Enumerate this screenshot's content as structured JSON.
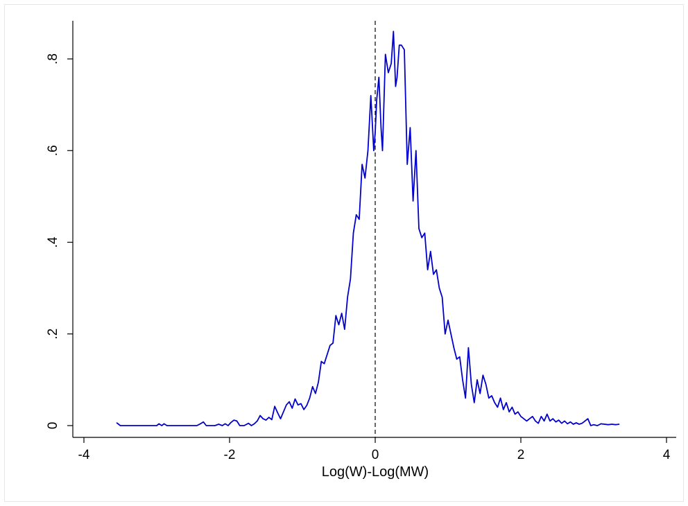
{
  "chart_data": {
    "type": "line",
    "title": "",
    "xlabel": "Log(W)-Log(MW)",
    "ylabel": "",
    "xlim": [
      -4,
      4
    ],
    "ylim": [
      0,
      0.8
    ],
    "x_ticks": [
      -4,
      -2,
      0,
      2,
      4
    ],
    "x_tick_labels": [
      "-4",
      "-2",
      "0",
      "2",
      "4"
    ],
    "y_ticks": [
      0,
      0.2,
      0.4,
      0.6,
      0.8
    ],
    "y_tick_labels": [
      "0",
      ".2",
      ".4",
      ".6",
      ".8"
    ],
    "grid": false,
    "reference_line": {
      "x": 0,
      "style": "dashed",
      "color": "#000000"
    },
    "series": [
      {
        "color": "#0000cc",
        "x": [
          -3.55,
          -3.5,
          -3.4,
          -3.2,
          -3.0,
          -2.97,
          -2.93,
          -2.9,
          -2.86,
          -2.8,
          -2.6,
          -2.45,
          -2.4,
          -2.36,
          -2.32,
          -2.2,
          -2.15,
          -2.1,
          -2.06,
          -2.02,
          -1.98,
          -1.94,
          -1.9,
          -1.86,
          -1.8,
          -1.74,
          -1.7,
          -1.66,
          -1.62,
          -1.58,
          -1.54,
          -1.5,
          -1.46,
          -1.42,
          -1.38,
          -1.34,
          -1.3,
          -1.26,
          -1.22,
          -1.18,
          -1.14,
          -1.1,
          -1.06,
          -1.02,
          -0.98,
          -0.94,
          -0.9,
          -0.86,
          -0.82,
          -0.78,
          -0.74,
          -0.7,
          -0.66,
          -0.62,
          -0.58,
          -0.54,
          -0.5,
          -0.46,
          -0.42,
          -0.38,
          -0.34,
          -0.3,
          -0.26,
          -0.22,
          -0.18,
          -0.14,
          -0.1,
          -0.06,
          -0.02,
          0.0,
          0.02,
          0.05,
          0.08,
          0.1,
          0.14,
          0.18,
          0.22,
          0.25,
          0.28,
          0.3,
          0.33,
          0.36,
          0.4,
          0.44,
          0.48,
          0.52,
          0.56,
          0.6,
          0.64,
          0.68,
          0.72,
          0.76,
          0.8,
          0.84,
          0.88,
          0.92,
          0.96,
          1.0,
          1.04,
          1.08,
          1.12,
          1.16,
          1.2,
          1.24,
          1.28,
          1.32,
          1.36,
          1.4,
          1.44,
          1.48,
          1.52,
          1.56,
          1.6,
          1.64,
          1.68,
          1.72,
          1.76,
          1.8,
          1.84,
          1.88,
          1.92,
          1.96,
          2.0,
          2.04,
          2.08,
          2.12,
          2.16,
          2.2,
          2.24,
          2.28,
          2.32,
          2.36,
          2.4,
          2.44,
          2.48,
          2.52,
          2.56,
          2.6,
          2.64,
          2.68,
          2.72,
          2.76,
          2.8,
          2.84,
          2.88,
          2.92,
          2.96,
          3.0,
          3.05,
          3.1,
          3.2,
          3.25,
          3.3,
          3.35
        ],
        "y": [
          0.006,
          0.0,
          0.0,
          0.0,
          0.0,
          0.004,
          0.0,
          0.004,
          0.0,
          0.0,
          0.0,
          0.0,
          0.004,
          0.008,
          0.0,
          0.0,
          0.003,
          0.0,
          0.004,
          0.0,
          0.007,
          0.012,
          0.01,
          0.0,
          0.0,
          0.005,
          0.0,
          0.004,
          0.01,
          0.022,
          0.015,
          0.012,
          0.018,
          0.013,
          0.042,
          0.028,
          0.015,
          0.03,
          0.045,
          0.052,
          0.038,
          0.058,
          0.045,
          0.048,
          0.035,
          0.044,
          0.06,
          0.085,
          0.07,
          0.095,
          0.14,
          0.135,
          0.155,
          0.175,
          0.18,
          0.24,
          0.22,
          0.245,
          0.21,
          0.28,
          0.32,
          0.42,
          0.46,
          0.45,
          0.57,
          0.54,
          0.6,
          0.72,
          0.6,
          0.64,
          0.71,
          0.76,
          0.65,
          0.6,
          0.81,
          0.77,
          0.79,
          0.86,
          0.74,
          0.76,
          0.83,
          0.83,
          0.82,
          0.57,
          0.65,
          0.49,
          0.6,
          0.43,
          0.41,
          0.42,
          0.34,
          0.38,
          0.33,
          0.34,
          0.3,
          0.28,
          0.2,
          0.23,
          0.2,
          0.17,
          0.145,
          0.15,
          0.1,
          0.06,
          0.17,
          0.09,
          0.05,
          0.1,
          0.07,
          0.11,
          0.09,
          0.06,
          0.065,
          0.05,
          0.04,
          0.06,
          0.035,
          0.05,
          0.03,
          0.04,
          0.025,
          0.03,
          0.02,
          0.015,
          0.01,
          0.015,
          0.02,
          0.01,
          0.005,
          0.02,
          0.01,
          0.025,
          0.01,
          0.015,
          0.008,
          0.012,
          0.005,
          0.01,
          0.004,
          0.008,
          0.003,
          0.006,
          0.003,
          0.005,
          0.01,
          0.015,
          0.0,
          0.002,
          0.0,
          0.004,
          0.002,
          0.003,
          0.002,
          0.003
        ]
      }
    ]
  }
}
